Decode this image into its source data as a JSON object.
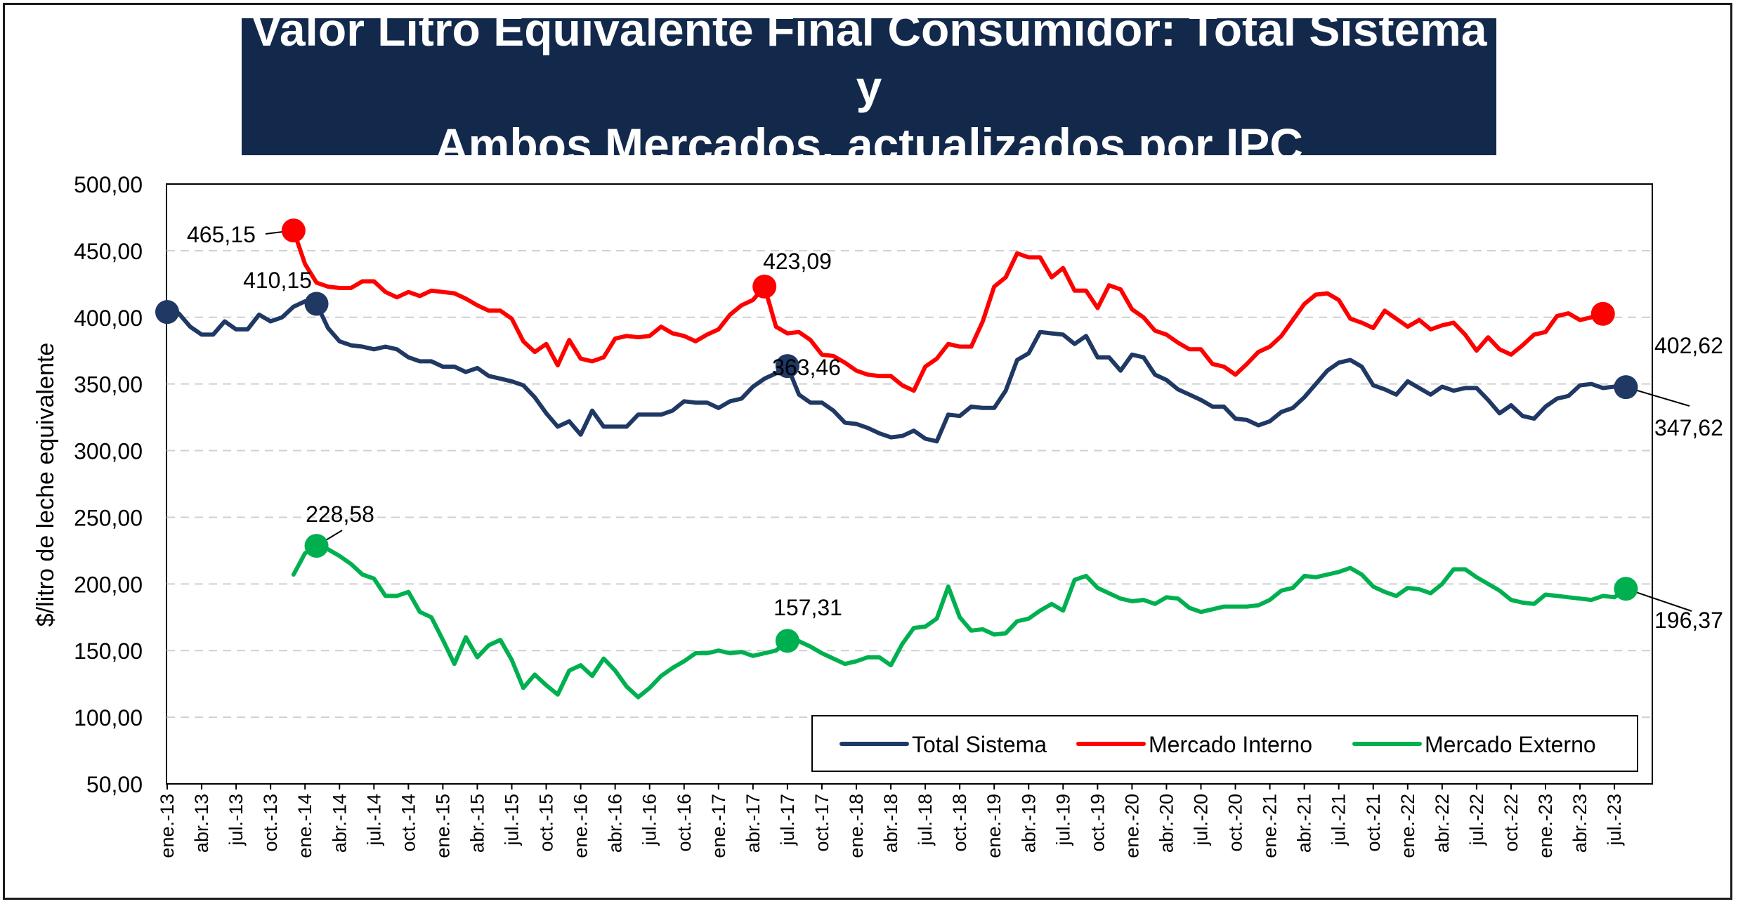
{
  "chart_data": {
    "type": "line",
    "title": "Valor Litro Equivalente Final Consumidor: Total Sistema y\nAmbos Mercados, actualizados por IPC",
    "xlabel": "",
    "ylabel": "$/litro de leche equivalente",
    "ylim": [
      50,
      500
    ],
    "yticks": [
      "50,00",
      "100,00",
      "150,00",
      "200,00",
      "250,00",
      "300,00",
      "350,00",
      "400,00",
      "450,00",
      "500,00"
    ],
    "xtick_labels": [
      "ene.-13",
      "abr.-13",
      "jul.-13",
      "oct.-13",
      "ene.-14",
      "abr.-14",
      "jul.-14",
      "oct.-14",
      "ene.-15",
      "abr.-15",
      "jul.-15",
      "oct.-15",
      "ene.-16",
      "abr.-16",
      "jul.-16",
      "oct.-16",
      "ene.-17",
      "abr.-17",
      "jul.-17",
      "oct.-17",
      "ene.-18",
      "abr.-18",
      "jul.-18",
      "oct.-18",
      "ene.-19",
      "abr.-19",
      "jul.-19",
      "oct.-19",
      "ene.-20",
      "abr.-20",
      "jul.-20",
      "oct.-20",
      "ene.-21",
      "abr.-21",
      "jul.-21",
      "oct.-21",
      "ene.-22",
      "abr.-22",
      "jul.-22",
      "oct.-22",
      "ene.-23",
      "abr.-23",
      "jul.-23"
    ],
    "x_start": "ene.-13",
    "grid": "horizontal-dashed",
    "legend_position": "bottom-right",
    "series": [
      {
        "name": "Total Sistema",
        "color": "#1f3864",
        "start_index": 0,
        "values": [
          404.0,
          403.0,
          393.0,
          387.0,
          387.0,
          397.0,
          391.0,
          391.0,
          402.0,
          397.0,
          400.0,
          408.0,
          412.0,
          410.15,
          392.0,
          382.0,
          379.0,
          378.0,
          376.0,
          378.0,
          376.0,
          370.0,
          367.0,
          367.0,
          363.0,
          363.0,
          359.0,
          362.0,
          356.0,
          354.0,
          352.0,
          349.0,
          340.0,
          328.0,
          318.0,
          322.0,
          312.0,
          330.0,
          318.0,
          318.0,
          318.0,
          327.0,
          327.0,
          327.0,
          330.0,
          337.0,
          336.0,
          336.0,
          332.0,
          337.0,
          339.0,
          348.0,
          354.0,
          358.0,
          363.46,
          342.0,
          336.0,
          336.0,
          330.0,
          321.0,
          320.0,
          317.0,
          313.0,
          310.0,
          311.0,
          315.0,
          309.0,
          307.0,
          327.0,
          326.0,
          333.0,
          332.0,
          332.0,
          345.0,
          368.0,
          373.0,
          389.0,
          388.0,
          387.0,
          380.0,
          386.0,
          370.0,
          370.0,
          360.0,
          372.0,
          370.0,
          357.0,
          353.0,
          346.0,
          342.0,
          338.0,
          333.0,
          333.0,
          324.0,
          323.0,
          319.0,
          322.0,
          329.0,
          332.0,
          340.0,
          350.0,
          360.0,
          366.0,
          368.0,
          363.0,
          349.0,
          346.0,
          342.0,
          352.0,
          347.0,
          342.0,
          348.0,
          345.0,
          347.0,
          347.0,
          338.0,
          328.0,
          334.0,
          326.0,
          324.0,
          333.0,
          339.0,
          341.0,
          349.0,
          350.0,
          347.0,
          348.0,
          347.62
        ]
      },
      {
        "name": "Mercado Interno",
        "color": "#ff0000",
        "start_index": 11,
        "values": [
          465.15,
          440.0,
          426.0,
          423.0,
          422.0,
          422.0,
          427.0,
          427.0,
          419.0,
          415.0,
          419.0,
          416.0,
          420.0,
          419.0,
          418.0,
          414.0,
          409.0,
          405.0,
          405.0,
          399.0,
          382.0,
          374.0,
          380.0,
          364.0,
          383.0,
          369.0,
          367.0,
          370.0,
          384.0,
          386.0,
          385.0,
          386.0,
          393.0,
          388.0,
          386.0,
          382.0,
          387.0,
          391.0,
          402.0,
          409.0,
          413.0,
          423.09,
          393.0,
          388.0,
          389.0,
          383.0,
          372.0,
          371.0,
          366.0,
          360.0,
          357.0,
          356.0,
          356.0,
          349.0,
          345.0,
          363.0,
          369.0,
          380.0,
          378.0,
          378.0,
          397.0,
          423.0,
          430.0,
          448.0,
          445.0,
          445.0,
          430.0,
          437.0,
          420.0,
          420.0,
          407.0,
          424.0,
          421.0,
          406.0,
          400.0,
          390.0,
          387.0,
          381.0,
          376.0,
          376.0,
          365.0,
          363.0,
          357.0,
          365.0,
          374.0,
          378.0,
          386.0,
          398.0,
          410.0,
          417.0,
          418.0,
          413.0,
          399.0,
          396.0,
          392.0,
          405.0,
          399.0,
          393.0,
          398.0,
          391.0,
          394.0,
          396.0,
          387.0,
          375.0,
          385.0,
          376.0,
          372.0,
          379.0,
          387.0,
          389.0,
          401.0,
          403.0,
          398.0,
          400.0,
          402.62
        ]
      },
      {
        "name": "Mercado Externo",
        "color": "#00b050",
        "start_index": 11,
        "values": [
          207.0,
          223.0,
          228.58,
          226.0,
          221.0,
          215.0,
          207.0,
          204.0,
          191.0,
          191.0,
          194.0,
          179.0,
          175.0,
          158.0,
          140.0,
          160.0,
          145.0,
          154.0,
          158.0,
          143.0,
          122.0,
          132.0,
          124.0,
          117.0,
          135.0,
          139.0,
          131.0,
          144.0,
          135.0,
          123.0,
          115.0,
          122.0,
          131.0,
          137.0,
          142.0,
          148.0,
          148.0,
          150.0,
          148.0,
          149.0,
          146.0,
          148.0,
          150.0,
          157.31,
          157.0,
          153.0,
          148.0,
          144.0,
          140.0,
          142.0,
          145.0,
          145.0,
          139.0,
          155.0,
          167.0,
          168.0,
          174.0,
          198.0,
          175.0,
          165.0,
          166.0,
          162.0,
          163.0,
          172.0,
          174.0,
          180.0,
          185.0,
          180.0,
          203.0,
          206.0,
          197.0,
          193.0,
          189.0,
          187.0,
          188.0,
          185.0,
          190.0,
          189.0,
          182.0,
          179.0,
          181.0,
          183.0,
          183.0,
          183.0,
          184.0,
          188.0,
          195.0,
          197.0,
          206.0,
          205.0,
          207.0,
          209.0,
          212.0,
          207.0,
          198.0,
          194.0,
          191.0,
          197.0,
          196.0,
          193.0,
          200.0,
          211.0,
          211.0,
          205.0,
          200.0,
          195.0,
          188.0,
          186.0,
          185.0,
          192.0,
          191.0,
          190.0,
          189.0,
          188.0,
          191.0,
          190.0,
          196.37
        ]
      }
    ],
    "highlights": [
      {
        "series": 0,
        "index": 0,
        "value": 404.0,
        "label": ""
      },
      {
        "series": 0,
        "index": 13,
        "value": 410.15,
        "label": "410,15"
      },
      {
        "series": 0,
        "index": 54,
        "value": 363.46,
        "label": "363,46"
      },
      {
        "series": 0,
        "index": 127,
        "value": 347.62,
        "label": "347,62"
      },
      {
        "series": 1,
        "index": 11,
        "value": 465.15,
        "label": "465,15"
      },
      {
        "series": 1,
        "index": 52,
        "value": 423.09,
        "label": "423,09"
      },
      {
        "series": 1,
        "index": 125,
        "value": 402.62,
        "label": "402,62"
      },
      {
        "series": 2,
        "index": 13,
        "value": 228.58,
        "label": "228,58"
      },
      {
        "series": 2,
        "index": 54,
        "value": 157.31,
        "label": "157,31"
      },
      {
        "series": 2,
        "index": 127,
        "value": 196.37,
        "label": "196,37"
      }
    ]
  }
}
